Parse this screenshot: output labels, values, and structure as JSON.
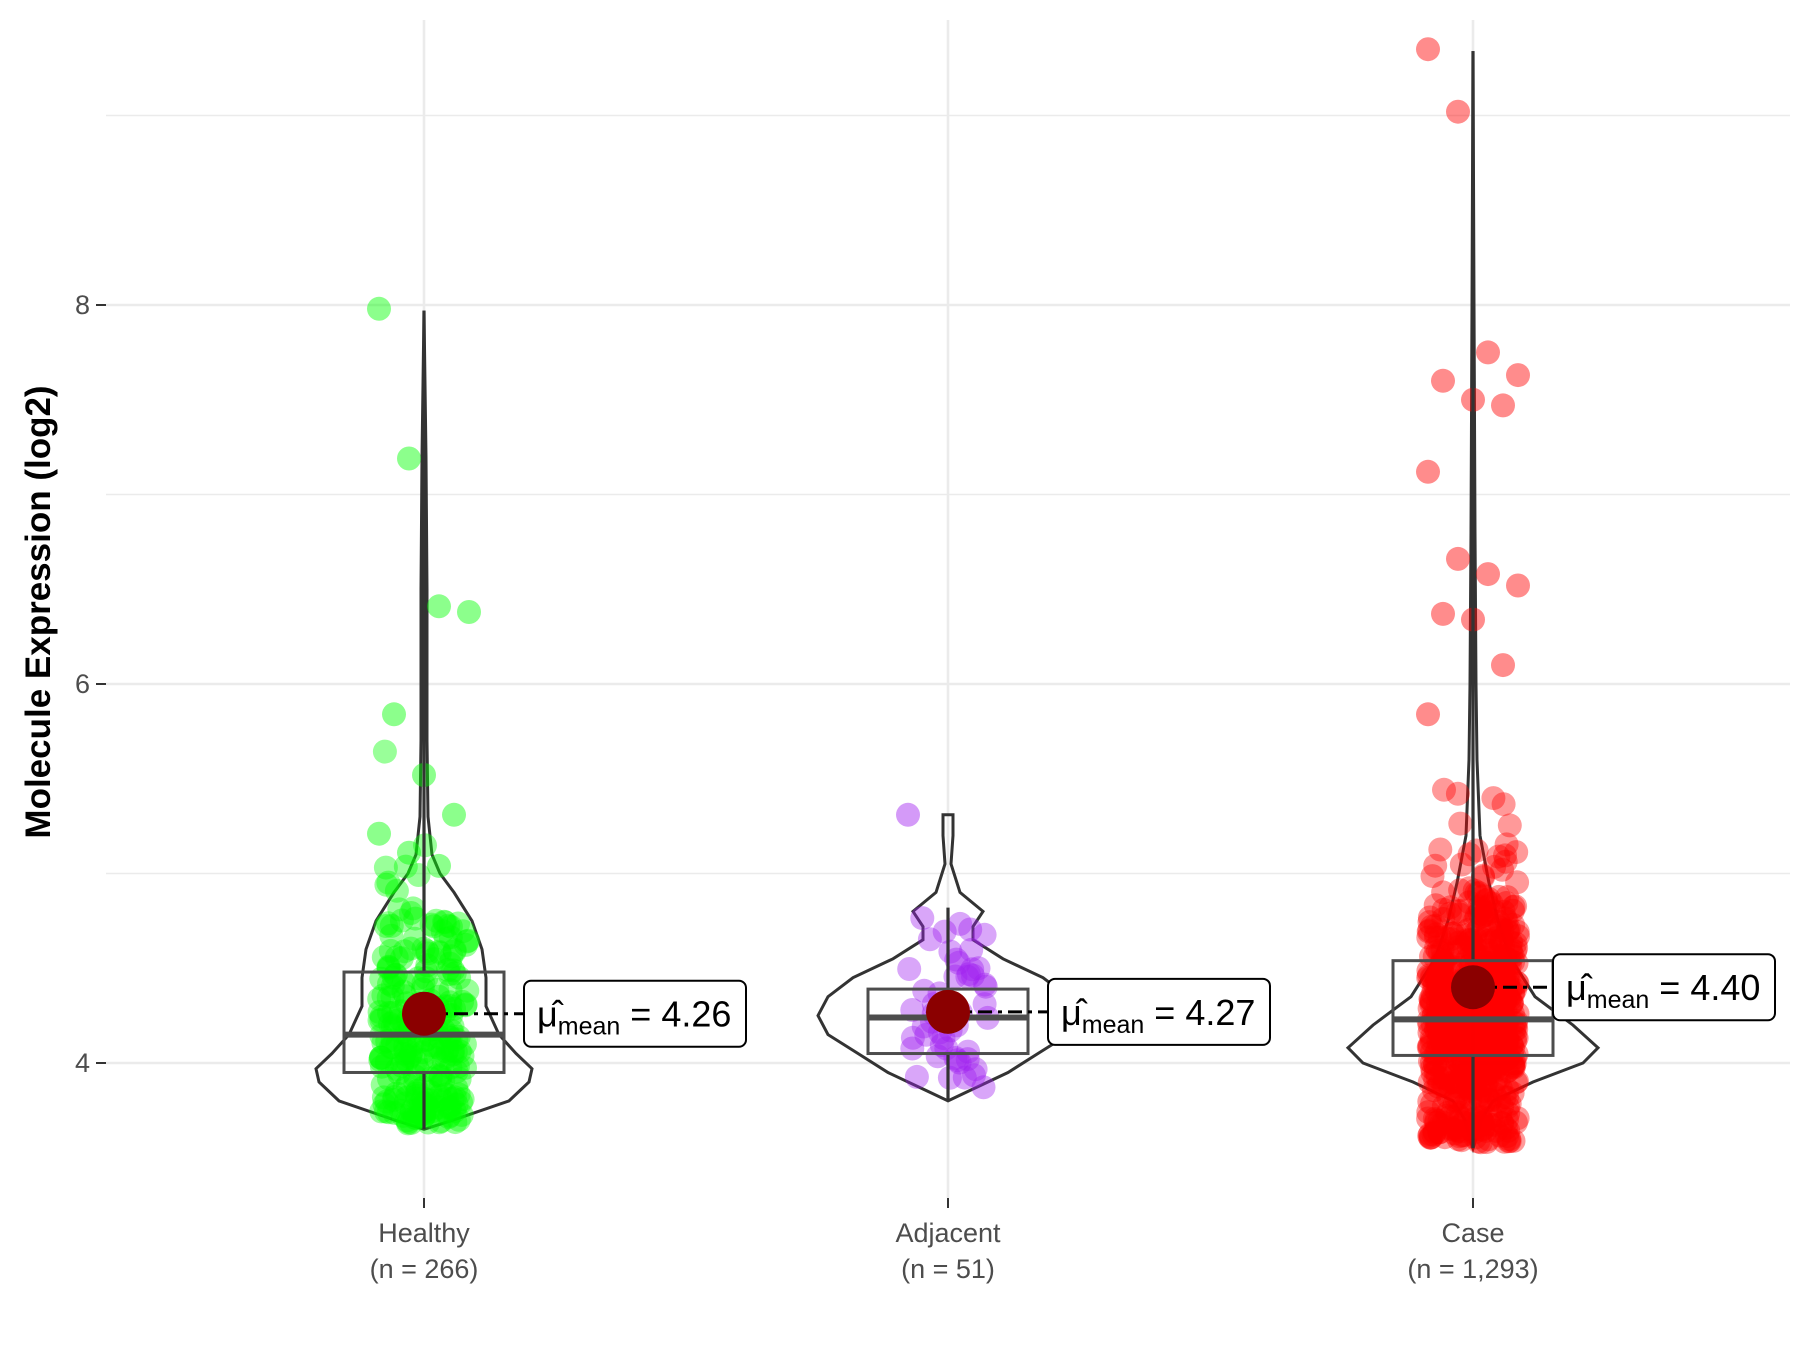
{
  "chart_data": {
    "type": "violin",
    "ylabel": "Molecule Expression (log2)",
    "xlabel": "",
    "ylim": [
      3.25,
      9.75
    ],
    "y_ticks": [
      4,
      6,
      8
    ],
    "grid": true,
    "legend": "none",
    "mean_label": {
      "symbol": "μ̂",
      "subscript": "mean",
      "equals": "="
    },
    "groups": [
      {
        "category": "Healthy",
        "n_label": "(n = 266)",
        "color": "#00ff00",
        "mean": 4.26,
        "mean_text": "4.26",
        "box": {
          "q1": 3.95,
          "median": 4.15,
          "q3": 4.48,
          "whisker_low": 3.65,
          "whisker_high": 7.97
        },
        "outliers": [
          7.98,
          7.19,
          6.41,
          6.38,
          5.84,
          5.52,
          5.31,
          5.21,
          5.11,
          5.04
        ]
      },
      {
        "category": "Adjacent",
        "n_label": "(n = 51)",
        "color": "#a020f0",
        "mean": 4.27,
        "mean_text": "4.27",
        "box": {
          "q1": 4.05,
          "median": 4.24,
          "q3": 4.39,
          "whisker_low": 3.8,
          "whisker_high": 4.82
        },
        "outliers": [
          5.31
        ]
      },
      {
        "category": "Case",
        "n_label": "(n = 1,293)",
        "color": "#ff0000",
        "mean": 4.4,
        "mean_text": "4.40",
        "box": {
          "q1": 4.04,
          "median": 4.23,
          "q3": 4.54,
          "whisker_low": 3.55,
          "whisker_high": 9.34
        },
        "outliers": [
          9.35,
          9.02,
          7.75,
          7.63,
          7.6,
          7.5,
          7.47,
          7.12,
          6.66,
          6.58,
          6.52,
          6.37,
          6.34,
          6.1,
          5.84
        ]
      }
    ]
  }
}
